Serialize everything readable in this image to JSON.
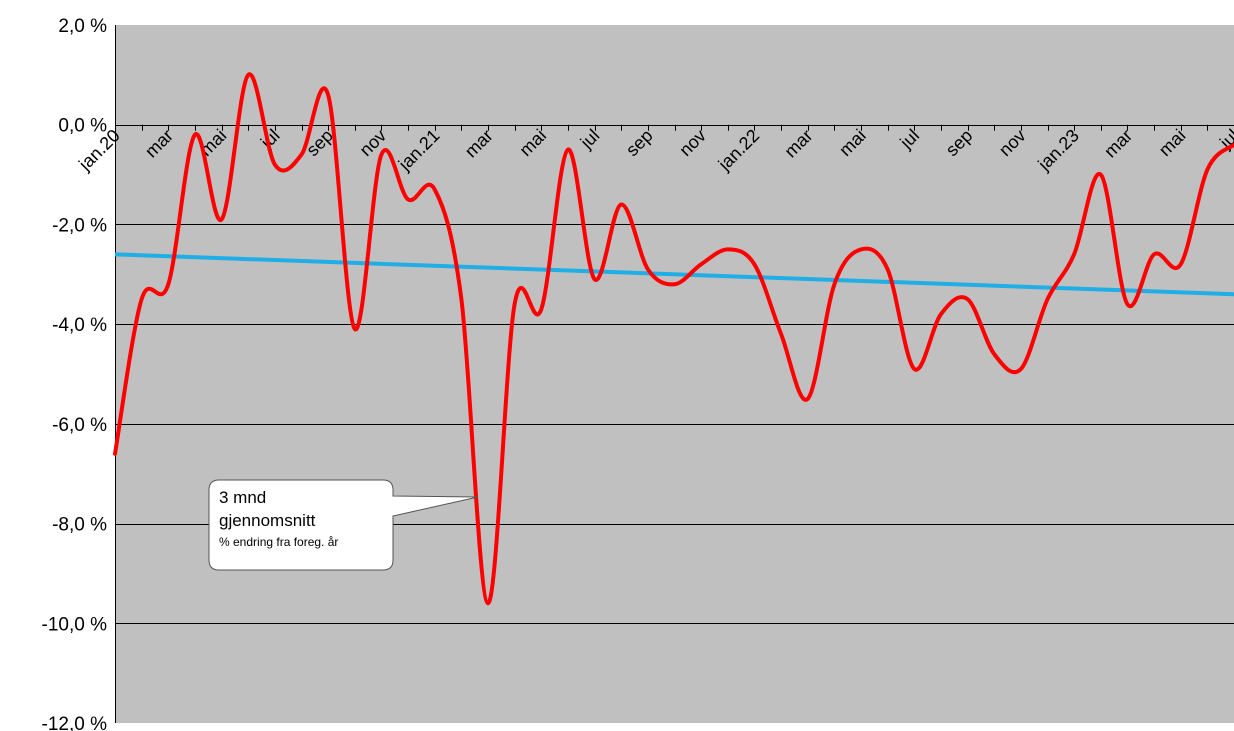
{
  "chart_data": {
    "type": "line",
    "title": "",
    "xlabel": "",
    "ylabel": "",
    "ylim": [
      -12,
      2
    ],
    "yticks": [
      "2,0 %",
      "0,0 %",
      "-2,0 %",
      "-4,0 %",
      "-6,0 %",
      "-8,0 %",
      "-10,0 %",
      "-12,0 %"
    ],
    "ytick_values": [
      2,
      0,
      -2,
      -4,
      -6,
      -8,
      -10,
      -12
    ],
    "xtick_labels": [
      "jan.20",
      "mar",
      "mai",
      "jul",
      "sep",
      "nov",
      "jan.21",
      "mar",
      "mai",
      "jul",
      "sep",
      "nov",
      "jan.22",
      "mar",
      "mai",
      "jul",
      "sep",
      "nov",
      "jan.23",
      "mar",
      "mai",
      "jul"
    ],
    "grid": true,
    "legend": "none",
    "annotation": {
      "line1": "3 mnd",
      "line2": "gjennomsnitt",
      "line3": "% endring fra foreg. år"
    },
    "series": [
      {
        "color": "#ff0000",
        "x": [
          "jan.20",
          "feb.20",
          "mar.20",
          "apr.20",
          "mai.20",
          "jun.20",
          "jul.20",
          "aug.20",
          "sep.20",
          "okt.20",
          "nov.20",
          "des.20",
          "jan.21",
          "feb.21",
          "mar.21",
          "apr.21",
          "mai.21",
          "jun.21",
          "jul.21",
          "aug.21",
          "sep.21",
          "okt.21",
          "nov.21",
          "des.21",
          "jan.22",
          "feb.22",
          "mar.22",
          "apr.22",
          "mai.22",
          "jun.22",
          "jul.22",
          "aug.22",
          "sep.22",
          "okt.22",
          "nov.22",
          "des.22",
          "jan.23",
          "feb.23",
          "mar.23",
          "apr.23",
          "mai.23",
          "jun.23",
          "jul.23"
        ],
        "values": [
          -6.6,
          -3.5,
          -3.2,
          -0.2,
          -1.9,
          1.0,
          -0.8,
          -0.6,
          0.6,
          -4.1,
          -0.6,
          -1.5,
          -1.3,
          -3.5,
          -9.6,
          -3.6,
          -3.7,
          -0.5,
          -3.1,
          -1.6,
          -2.9,
          -3.2,
          -2.8,
          -2.5,
          -2.8,
          -4.2,
          -5.5,
          -3.2,
          -2.5,
          -2.9,
          -4.9,
          -3.8,
          -3.5,
          -4.6,
          -4.9,
          -3.5,
          -2.6,
          -1.0,
          -3.6,
          -2.6,
          -2.8,
          -0.9,
          -0.4
        ]
      },
      {
        "color": "#1faee6",
        "kind": "trend",
        "x": [
          "jan.20",
          "jul.23"
        ],
        "values": [
          -2.6,
          -3.4
        ]
      }
    ],
    "colors": {
      "plot_bg": "#c0c0c0",
      "gridline": "#000000",
      "callout_bg": "#ffffff"
    }
  }
}
